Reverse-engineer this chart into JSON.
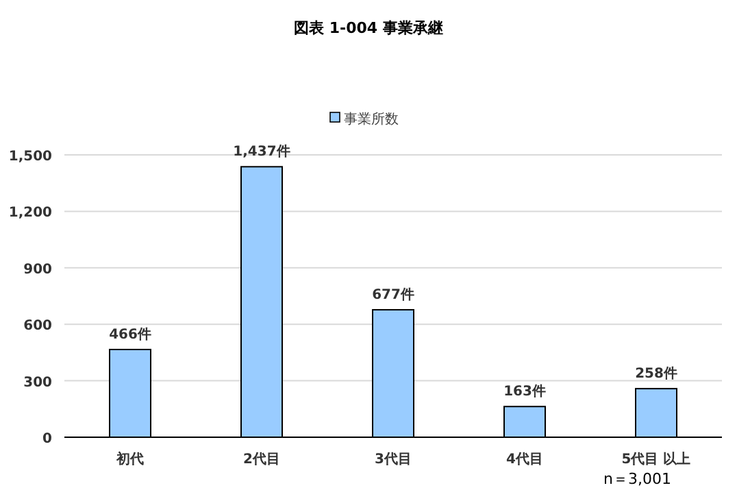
{
  "chart_data": {
    "type": "bar",
    "title": "図表 1-004 事業承継",
    "categories": [
      "初代",
      "2代目",
      "3代目",
      "4代目",
      "5代目 以上"
    ],
    "series": [
      {
        "name": "事業所数",
        "color": "#99ccff",
        "values": [
          466,
          1437,
          677,
          163,
          258
        ],
        "value_labels": [
          "466件",
          "1,437件",
          "677件",
          "163件",
          "258件"
        ]
      }
    ],
    "ylim": [
      0,
      1500
    ],
    "yticks": [
      0,
      300,
      600,
      900,
      {
        "value": 1200,
        "label": "1,200"
      },
      {
        "value": 1500,
        "label": "1,500"
      }
    ],
    "grid": "y",
    "legend": "top",
    "annotations": [
      "n＝3,001"
    ]
  }
}
